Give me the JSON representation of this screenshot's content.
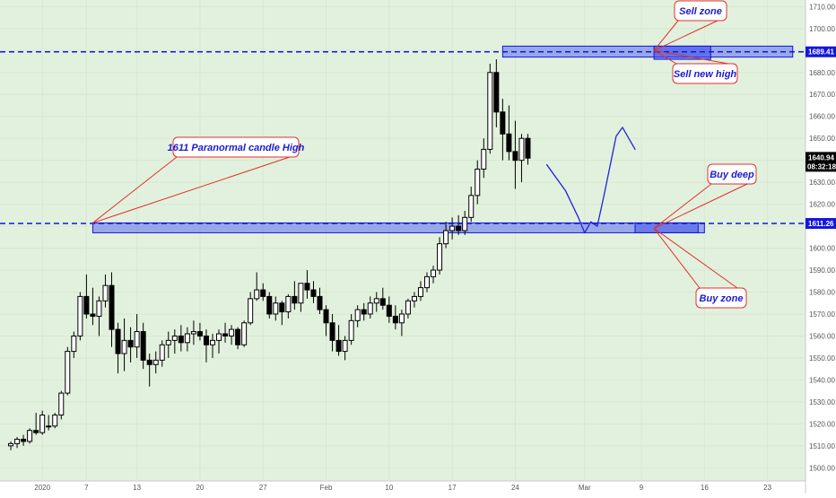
{
  "chart_data": {
    "type": "candlestick",
    "y_axis": {
      "ticks": [
        1500,
        1510,
        1520,
        1530,
        1540,
        1550,
        1560,
        1570,
        1580,
        1590,
        1600,
        1610,
        1620,
        1630,
        1640,
        1650,
        1660,
        1670,
        1680,
        1690,
        1700,
        1710
      ],
      "tick_labels": [
        "1500.00",
        "1510.00",
        "1520.00",
        "1530.00",
        "1540.00",
        "1550.00",
        "1560.00",
        "1570.00",
        "1580.00",
        "1590.00",
        "1600.00",
        "1610.00",
        "1620.00",
        "1630.00",
        "1640.00",
        "1650.00",
        "1660.00",
        "1670.00",
        "1680.00",
        "1690.00",
        "1700.00",
        "1710.00"
      ],
      "range": [
        1494,
        1713
      ],
      "position": "right"
    },
    "x_axis": {
      "tick_labels": [
        {
          "label": "2020",
          "index": 5
        },
        {
          "label": "7",
          "index": 12
        },
        {
          "label": "13",
          "index": 20
        },
        {
          "label": "20",
          "index": 30
        },
        {
          "label": "27",
          "index": 40
        },
        {
          "label": "Feb",
          "index": 50
        },
        {
          "label": "10",
          "index": 60
        },
        {
          "label": "17",
          "index": 70
        },
        {
          "label": "24",
          "index": 80
        },
        {
          "label": "Mar",
          "index": 91
        },
        {
          "label": "9",
          "index": 100
        },
        {
          "label": "16",
          "index": 110
        },
        {
          "label": "23",
          "index": 120
        }
      ]
    },
    "grid": true,
    "background": "#e2f1dd",
    "candles": [
      [
        1510,
        1512,
        1508,
        1511
      ],
      [
        1511,
        1514,
        1509,
        1513
      ],
      [
        1513,
        1515,
        1510,
        1512
      ],
      [
        1512,
        1518,
        1511,
        1517
      ],
      [
        1517,
        1525,
        1515,
        1516
      ],
      [
        1516,
        1526,
        1515,
        1524
      ],
      [
        1519,
        1524,
        1517,
        1519
      ],
      [
        1519,
        1525,
        1518,
        1524
      ],
      [
        1524,
        1535,
        1522,
        1534
      ],
      [
        1534,
        1555,
        1533,
        1553
      ],
      [
        1553,
        1562,
        1550,
        1560
      ],
      [
        1560,
        1580,
        1558,
        1578
      ],
      [
        1578,
        1588,
        1568,
        1570
      ],
      [
        1570,
        1582,
        1565,
        1569
      ],
      [
        1569,
        1578,
        1560,
        1576
      ],
      [
        1576,
        1588,
        1573,
        1583
      ],
      [
        1583,
        1589,
        1555,
        1563
      ],
      [
        1563,
        1566,
        1543,
        1552
      ],
      [
        1552,
        1568,
        1544,
        1558
      ],
      [
        1558,
        1564,
        1548,
        1555
      ],
      [
        1555,
        1570,
        1550,
        1562
      ],
      [
        1562,
        1566,
        1545,
        1549
      ],
      [
        1549,
        1552,
        1537,
        1547
      ],
      [
        1547,
        1553,
        1543,
        1549
      ],
      [
        1549,
        1558,
        1546,
        1556
      ],
      [
        1556,
        1562,
        1550,
        1558
      ],
      [
        1558,
        1563,
        1552,
        1560
      ],
      [
        1560,
        1565,
        1553,
        1557
      ],
      [
        1557,
        1564,
        1553,
        1561
      ],
      [
        1561,
        1567,
        1556,
        1562
      ],
      [
        1562,
        1566,
        1558,
        1560
      ],
      [
        1560,
        1563,
        1548,
        1556
      ],
      [
        1556,
        1561,
        1550,
        1558
      ],
      [
        1558,
        1563,
        1552,
        1561
      ],
      [
        1561,
        1566,
        1557,
        1560
      ],
      [
        1560,
        1565,
        1556,
        1563
      ],
      [
        1563,
        1564,
        1554,
        1556
      ],
      [
        1556,
        1567,
        1555,
        1566
      ],
      [
        1566,
        1580,
        1565,
        1577
      ],
      [
        1577,
        1589,
        1576,
        1581
      ],
      [
        1581,
        1584,
        1576,
        1578
      ],
      [
        1578,
        1580,
        1568,
        1570
      ],
      [
        1570,
        1578,
        1567,
        1575
      ],
      [
        1575,
        1576,
        1565,
        1571
      ],
      [
        1571,
        1579,
        1568,
        1578
      ],
      [
        1578,
        1585,
        1572,
        1575
      ],
      [
        1575,
        1584,
        1571,
        1584
      ],
      [
        1584,
        1590,
        1577,
        1581
      ],
      [
        1581,
        1585,
        1575,
        1578
      ],
      [
        1578,
        1582,
        1570,
        1572
      ],
      [
        1572,
        1574,
        1560,
        1566
      ],
      [
        1566,
        1570,
        1553,
        1558
      ],
      [
        1558,
        1565,
        1551,
        1553
      ],
      [
        1553,
        1560,
        1549,
        1558
      ],
      [
        1558,
        1570,
        1556,
        1567
      ],
      [
        1567,
        1574,
        1564,
        1572
      ],
      [
        1572,
        1575,
        1567,
        1570
      ],
      [
        1570,
        1578,
        1568,
        1575
      ],
      [
        1575,
        1580,
        1571,
        1577
      ],
      [
        1577,
        1582,
        1572,
        1574
      ],
      [
        1574,
        1578,
        1566,
        1569
      ],
      [
        1569,
        1574,
        1563,
        1566
      ],
      [
        1566,
        1572,
        1560,
        1570
      ],
      [
        1570,
        1577,
        1568,
        1576
      ],
      [
        1576,
        1580,
        1573,
        1578
      ],
      [
        1578,
        1585,
        1576,
        1582
      ],
      [
        1582,
        1589,
        1580,
        1587
      ],
      [
        1587,
        1592,
        1584,
        1590
      ],
      [
        1590,
        1605,
        1588,
        1602
      ],
      [
        1602,
        1612,
        1600,
        1608
      ],
      [
        1608,
        1614,
        1604,
        1610
      ],
      [
        1610,
        1615,
        1606,
        1608
      ],
      [
        1608,
        1617,
        1606,
        1614
      ],
      [
        1614,
        1628,
        1612,
        1624
      ],
      [
        1624,
        1640,
        1620,
        1636
      ],
      [
        1636,
        1650,
        1632,
        1645
      ],
      [
        1645,
        1684,
        1643,
        1680
      ],
      [
        1680,
        1686,
        1655,
        1662
      ],
      [
        1662,
        1668,
        1640,
        1652
      ],
      [
        1652,
        1665,
        1640,
        1644
      ],
      [
        1644,
        1658,
        1627,
        1640
      ],
      [
        1640,
        1652,
        1630,
        1650
      ],
      [
        1650,
        1652,
        1638,
        1641
      ]
    ],
    "candle_index_offset": 1,
    "price_lines": [
      {
        "price": 1689.41,
        "label": "1689.41",
        "color": "#1515dd"
      },
      {
        "price": 1611.26,
        "label": "1611.26",
        "color": "#1515dd"
      }
    ],
    "last_price": {
      "value": 1640.94,
      "label": "1640.94",
      "countdown": "08:32:18"
    },
    "zones": [
      {
        "name": "Sell zone",
        "top": 1692,
        "bottom": 1687,
        "from_index": 78,
        "to_index": 124
      },
      {
        "name": "Buy zone",
        "top": 1611.5,
        "bottom": 1607,
        "from_index": 13,
        "to_index": 110
      }
    ],
    "annotations": [
      {
        "text": "1611 Paranormal candle High",
        "anchor_index": 13,
        "anchor_price": 1611.5
      },
      {
        "text": "Sell zone",
        "anchor_index": 102,
        "anchor_price": 1690
      },
      {
        "text": "Sell new high",
        "anchor_index": 102,
        "anchor_price": 1690
      },
      {
        "text": "Buy deep",
        "anchor_index": 102,
        "anchor_price": 1609
      },
      {
        "text": "Buy zone",
        "anchor_index": 102,
        "anchor_price": 1609
      }
    ],
    "projection_path": [
      [
        86,
        1638
      ],
      [
        89,
        1626
      ],
      [
        91,
        1614
      ],
      [
        92,
        1607
      ],
      [
        93,
        1612
      ],
      [
        94,
        1610
      ],
      [
        95,
        1623
      ],
      [
        96,
        1637
      ],
      [
        97,
        1651
      ],
      [
        98,
        1655
      ],
      [
        99,
        1650
      ],
      [
        100,
        1645
      ]
    ]
  }
}
